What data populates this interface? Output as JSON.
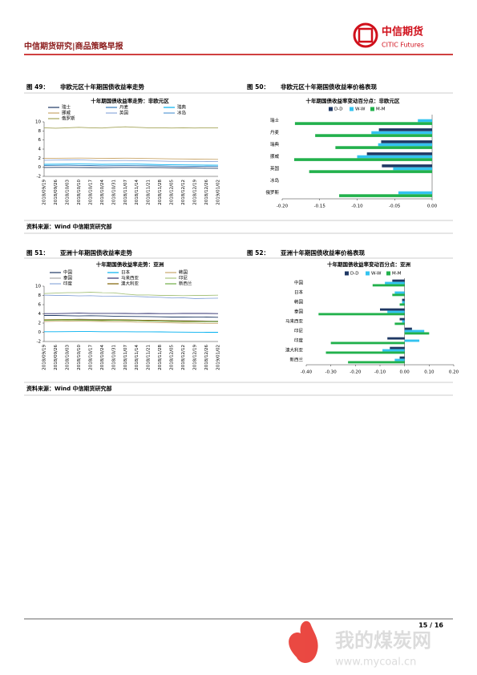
{
  "header": {
    "title": "中信期货研究|商品策略早报",
    "logo_cn": "中信期货",
    "logo_en": "CITIC Futures"
  },
  "figures": [
    {
      "label": "图 49：",
      "caption": "非欧元区十年期国债收益率走势"
    },
    {
      "label": "图 50：",
      "caption": "非欧元区十年期国债收益率价格表现"
    },
    {
      "label": "图 51：",
      "caption": "亚洲十年期国债收益率走势"
    },
    {
      "label": "图 52：",
      "caption": "亚洲十年期国债收益率价格表现"
    }
  ],
  "sources": [
    "资料来源：Wind 中信期货研究部",
    "资料来源：Wind 中信期货研究部"
  ],
  "chart_data": [
    {
      "type": "line",
      "title": "十年期国债收益率走势：非欧元区",
      "categories": [
        "2018/09/19",
        "2018/09/26",
        "2018/10/03",
        "2018/10/10",
        "2018/10/17",
        "2018/10/24",
        "2018/10/31",
        "2018/11/07",
        "2018/11/14",
        "2018/11/21",
        "2018/11/28",
        "2018/12/05",
        "2018/12/12",
        "2018/12/19",
        "2018/12/26",
        "2019/01/02"
      ],
      "series": [
        {
          "name": "瑞士",
          "color": "#1f3864",
          "values": [
            -0.05,
            -0.03,
            -0.02,
            -0.04,
            -0.06,
            -0.1,
            -0.05,
            -0.03,
            -0.04,
            -0.06,
            -0.08,
            -0.12,
            -0.14,
            -0.17,
            -0.2,
            -0.22
          ]
        },
        {
          "name": "丹麦",
          "color": "#2e75b6",
          "values": [
            0.4,
            0.42,
            0.43,
            0.4,
            0.38,
            0.32,
            0.35,
            0.37,
            0.35,
            0.33,
            0.3,
            0.25,
            0.22,
            0.2,
            0.18,
            0.17
          ]
        },
        {
          "name": "瑞典",
          "color": "#00b0f0",
          "values": [
            0.65,
            0.68,
            0.7,
            0.72,
            0.7,
            0.65,
            0.68,
            0.7,
            0.7,
            0.65,
            0.6,
            0.55,
            0.52,
            0.5,
            0.47,
            0.45
          ]
        },
        {
          "name": "挪威",
          "color": "#c9a66b",
          "values": [
            1.95,
            1.98,
            2.0,
            2.02,
            2.0,
            1.95,
            1.97,
            2.0,
            1.98,
            1.93,
            1.9,
            1.85,
            1.83,
            1.8,
            1.78,
            1.75
          ]
        },
        {
          "name": "英国",
          "color": "#8ea9db",
          "values": [
            1.55,
            1.58,
            1.62,
            1.65,
            1.55,
            1.45,
            1.48,
            1.5,
            1.45,
            1.4,
            1.37,
            1.3,
            1.3,
            1.28,
            1.27,
            1.25
          ]
        },
        {
          "name": "冰岛",
          "color": "#5b9bd5",
          "values": [
            null,
            null,
            null,
            null,
            null,
            null,
            null,
            null,
            null,
            null,
            null,
            null,
            null,
            null,
            null,
            null
          ]
        },
        {
          "name": "俄罗斯",
          "color": "#a5a55a",
          "values": [
            8.7,
            8.6,
            8.7,
            8.8,
            8.7,
            8.65,
            8.8,
            8.9,
            8.8,
            8.7,
            8.7,
            8.65,
            8.7,
            8.65,
            8.7,
            8.7
          ]
        }
      ],
      "ylim": [
        -2,
        10
      ],
      "yticks": [
        -2,
        0,
        2,
        4,
        6,
        8,
        10
      ]
    },
    {
      "type": "barh",
      "title": "十年期国债收益率变动百分点：非欧元区",
      "categories": [
        "瑞士",
        "丹麦",
        "瑞典",
        "挪威",
        "英国",
        "冰岛",
        "俄罗斯"
      ],
      "series": [
        {
          "name": "D-D",
          "color": "#1f3864",
          "values": [
            0,
            -0.071,
            -0.068,
            -0.087,
            -0.067,
            null,
            0
          ]
        },
        {
          "name": "W-W",
          "color": "#33c3f0",
          "values": [
            -0.019,
            -0.081,
            -0.072,
            -0.1,
            -0.052,
            null,
            -0.045
          ]
        },
        {
          "name": "M-M",
          "color": "#22b14c",
          "values": [
            -0.183,
            -0.156,
            -0.129,
            -0.184,
            -0.164,
            null,
            -0.124
          ]
        }
      ],
      "xlim": [
        -0.2,
        0
      ],
      "xticks": [
        {
          "value": -0.2,
          "label": "-0.20"
        },
        {
          "value": -0.15,
          "label": "-0.15"
        },
        {
          "value": -0.1,
          "label": "-0.10"
        },
        {
          "value": -0.05,
          "label": "-0.05"
        },
        {
          "value": 0,
          "label": "0.00"
        }
      ]
    },
    {
      "type": "line",
      "title": "十年期国债收益率走势：亚洲",
      "categories": [
        "2018/09/19",
        "2018/09/26",
        "2018/10/03",
        "2018/10/10",
        "2018/10/17",
        "2018/10/24",
        "2018/10/31",
        "2018/11/07",
        "2018/11/14",
        "2018/11/21",
        "2018/11/28",
        "2018/12/05",
        "2018/12/12",
        "2018/12/19",
        "2018/12/26",
        "2019/01/02"
      ],
      "series": [
        {
          "name": "中国",
          "color": "#1f3864",
          "values": [
            3.65,
            3.65,
            3.6,
            3.55,
            3.6,
            3.55,
            3.5,
            3.45,
            3.42,
            3.4,
            3.35,
            3.3,
            3.3,
            3.32,
            3.3,
            3.25
          ]
        },
        {
          "name": "日本",
          "color": "#00b0f0",
          "values": [
            0.12,
            0.13,
            0.14,
            0.15,
            0.15,
            0.12,
            0.12,
            0.12,
            0.1,
            0.1,
            0.08,
            0.06,
            0.04,
            0.02,
            0,
            0
          ]
        },
        {
          "name": "韩国",
          "color": "#c9a66b",
          "values": [
            2.35,
            2.4,
            2.45,
            2.42,
            2.38,
            2.35,
            2.3,
            2.3,
            2.2,
            2.15,
            2.1,
            2.05,
            2.0,
            1.98,
            1.95,
            1.95
          ]
        },
        {
          "name": "泰国",
          "color": "#a6a6a6",
          "values": [
            2.65,
            2.7,
            2.75,
            2.85,
            2.8,
            2.8,
            2.75,
            2.7,
            2.65,
            2.6,
            2.55,
            2.55,
            2.55,
            2.5,
            2.45,
            2.45
          ]
        },
        {
          "name": "马来西亚",
          "color": "#2f2f6f",
          "values": [
            4.05,
            4.05,
            4.1,
            4.15,
            4.1,
            4.1,
            4.1,
            4.08,
            4.05,
            4.08,
            4.06,
            4.05,
            4.1,
            4.08,
            4.08,
            4.05
          ]
        },
        {
          "name": "印尼",
          "color": "#a9c47f",
          "values": [
            8.4,
            8.5,
            8.6,
            8.6,
            8.7,
            8.6,
            8.55,
            8.3,
            8.1,
            8.1,
            8.0,
            8.0,
            7.95,
            8.0,
            8.0,
            8.05
          ]
        },
        {
          "name": "印度",
          "color": "#8ea9db",
          "values": [
            8.05,
            8.0,
            8.0,
            7.9,
            7.95,
            7.85,
            7.8,
            7.8,
            7.78,
            7.65,
            7.6,
            7.45,
            7.5,
            7.3,
            7.35,
            7.4
          ]
        },
        {
          "name": "澳大利亚",
          "color": "#7f6000",
          "values": [
            2.7,
            2.75,
            2.8,
            2.75,
            2.72,
            2.68,
            2.7,
            2.72,
            2.65,
            2.6,
            2.55,
            2.5,
            2.45,
            2.4,
            2.35,
            2.3
          ]
        },
        {
          "name": "新西兰",
          "color": "#70ad47",
          "values": [
            2.6,
            2.65,
            2.7,
            2.65,
            2.6,
            2.55,
            2.6,
            2.55,
            2.5,
            2.45,
            2.4,
            2.35,
            2.3,
            2.3,
            2.3,
            2.35
          ]
        }
      ],
      "ylim": [
        -2,
        10
      ],
      "yticks": [
        -2,
        0,
        2,
        4,
        6,
        8,
        10
      ]
    },
    {
      "type": "barh",
      "title": "十年期国债收益率变动百分点：亚洲",
      "categories": [
        "中国",
        "日本",
        "韩国",
        "泰国",
        "马来西亚",
        "印尼",
        "印度",
        "澳大利亚",
        "新西兰"
      ],
      "series": [
        {
          "name": "D-D",
          "color": "#1f3864",
          "values": [
            -0.05,
            0,
            -0.01,
            -0.1,
            -0.02,
            0.03,
            -0.07,
            -0.06,
            -0.02
          ]
        },
        {
          "name": "W-W",
          "color": "#33c3f0",
          "values": [
            -0.08,
            -0.04,
            -0.01,
            -0.07,
            -0.01,
            0.08,
            0.06,
            -0.09,
            -0.04
          ]
        },
        {
          "name": "M-M",
          "color": "#22b14c",
          "values": [
            -0.13,
            -0.05,
            -0.02,
            -0.35,
            -0.04,
            0.1,
            -0.3,
            -0.32,
            -0.23
          ]
        }
      ],
      "xlim": [
        -0.4,
        0.2
      ],
      "xticks": [
        {
          "value": -0.4,
          "label": "-0.40"
        },
        {
          "value": -0.3,
          "label": "-0.30"
        },
        {
          "value": -0.2,
          "label": "-0.20"
        },
        {
          "value": -0.1,
          "label": "-0.10"
        },
        {
          "value": 0,
          "label": "0.00"
        },
        {
          "value": 0.1,
          "label": "0.10"
        },
        {
          "value": 0.2,
          "label": "0.20"
        }
      ]
    }
  ],
  "footer": {
    "page": "15 / 16"
  },
  "watermark": {
    "cn": "我的煤炭网",
    "url": "www.mycoal.cn"
  }
}
